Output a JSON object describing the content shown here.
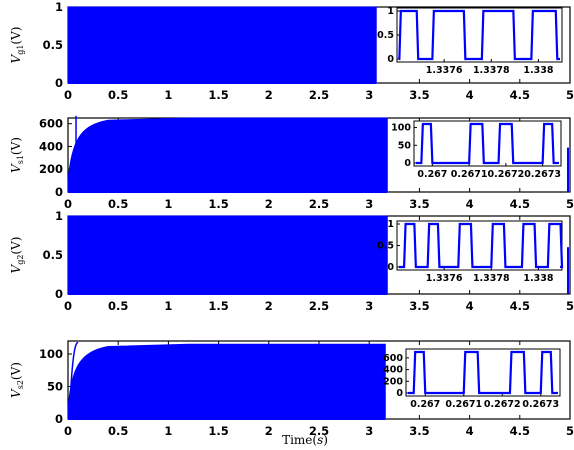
{
  "chart_data": [
    {
      "type": "line",
      "ylabel": {
        "main": "V",
        "sub": "g1",
        "unit": "(V)"
      },
      "xlim": [
        0,
        5
      ],
      "ylim": [
        0,
        1
      ],
      "x_ticks": [
        "0",
        "0.5",
        "1",
        "1.5",
        "2",
        "2.5",
        "3",
        "3.5",
        "4",
        "4.5",
        "5"
      ],
      "y_ticks": [
        "0",
        "0.5",
        "1"
      ],
      "signal": {
        "kind": "pwm",
        "low": 0,
        "high": 1,
        "end_time": 3.07,
        "color": "#0000ff"
      },
      "inset": {
        "xlim": [
          1.3374,
          1.3381
        ],
        "ylim": [
          0,
          1
        ],
        "x_ticks": [
          "1.3376",
          "1.3378",
          "1.338"
        ],
        "y_ticks": [
          "0",
          "0.5",
          "1"
        ],
        "pulses": [
          {
            "start": 1.33741,
            "end": 1.33749
          },
          {
            "start": 1.33755,
            "end": 1.33769
          },
          {
            "start": 1.33776,
            "end": 1.3379
          },
          {
            "start": 1.33797,
            "end": 1.33808
          }
        ]
      }
    },
    {
      "type": "line",
      "ylabel": {
        "main": "V",
        "sub": "s1",
        "unit": "(V)"
      },
      "xlim": [
        0,
        5
      ],
      "ylim": [
        0,
        650
      ],
      "x_ticks": [
        "0",
        "0.5",
        "1",
        "1.5",
        "2",
        "2.5",
        "3",
        "3.5",
        "4",
        "4.5",
        "5"
      ],
      "y_ticks": [
        "0",
        "200",
        "400",
        "600"
      ],
      "signal": {
        "kind": "pwm-rising",
        "low": 0,
        "high": 650,
        "end_time": 3.18,
        "color": "#0000ff"
      },
      "inset": {
        "xlim": [
          0.26695,
          0.26735
        ],
        "ylim": [
          0,
          110
        ],
        "x_ticks": [
          "0.267",
          "0.2671",
          "0.2672",
          "0.2673"
        ],
        "y_ticks": [
          "0",
          "50",
          "100"
        ],
        "pulses": [
          {
            "start": 0.26697,
            "end": 0.267
          },
          {
            "start": 0.2671,
            "end": 0.26714
          },
          {
            "start": 0.26718,
            "end": 0.26722
          },
          {
            "start": 0.2673,
            "end": 0.26733
          }
        ]
      }
    },
    {
      "type": "line",
      "ylabel": {
        "main": "V",
        "sub": "g2",
        "unit": "(V)"
      },
      "xlim": [
        0,
        5
      ],
      "ylim": [
        0,
        1
      ],
      "x_ticks": [
        "0",
        "0.5",
        "1",
        "1.5",
        "2",
        "2.5",
        "3",
        "3.5",
        "4",
        "4.5",
        "5"
      ],
      "y_ticks": [
        "0",
        "0.5",
        "1"
      ],
      "signal": {
        "kind": "pwm",
        "low": 0,
        "high": 1,
        "end_time": 3.18,
        "color": "#0000ff"
      },
      "inset": {
        "xlim": [
          1.3374,
          1.3381
        ],
        "ylim": [
          0,
          1
        ],
        "x_ticks": [
          "1.3376",
          "1.3378",
          "1.338"
        ],
        "y_ticks": [
          "0",
          "0.5",
          "1"
        ],
        "pulses": [
          {
            "start": 1.33743,
            "end": 1.33748
          },
          {
            "start": 1.33753,
            "end": 1.33758
          },
          {
            "start": 1.33766,
            "end": 1.33772
          },
          {
            "start": 1.3378,
            "end": 1.33786
          },
          {
            "start": 1.33793,
            "end": 1.33799
          },
          {
            "start": 1.33804,
            "end": 1.3381
          }
        ]
      }
    },
    {
      "type": "line",
      "ylabel": {
        "main": "V",
        "sub": "s2",
        "unit": "(V)"
      },
      "xlabel": {
        "text": "Time",
        "unit": "s"
      },
      "xlim": [
        0,
        5
      ],
      "ylim": [
        0,
        120
      ],
      "x_ticks": [
        "0",
        "0.5",
        "1",
        "1.5",
        "2",
        "2.5",
        "3",
        "3.5",
        "4",
        "4.5",
        "5"
      ],
      "y_ticks": [
        "0",
        "50",
        "100"
      ],
      "signal": {
        "kind": "pwm-rising",
        "low": 0,
        "high": 115,
        "end_time": 3.16,
        "color": "#0000ff"
      },
      "inset": {
        "xlim": [
          0.26695,
          0.26735
        ],
        "ylim": [
          0,
          700
        ],
        "x_ticks": [
          "0.267",
          "0.2671",
          "0.2672",
          "0.2673"
        ],
        "y_ticks": [
          "0",
          "200",
          "400",
          "600"
        ],
        "pulses": [
          {
            "start": 0.26697,
            "end": 0.267
          },
          {
            "start": 0.2671,
            "end": 0.26714
          },
          {
            "start": 0.26722,
            "end": 0.26726
          },
          {
            "start": 0.2673,
            "end": 0.26733
          }
        ]
      }
    }
  ]
}
